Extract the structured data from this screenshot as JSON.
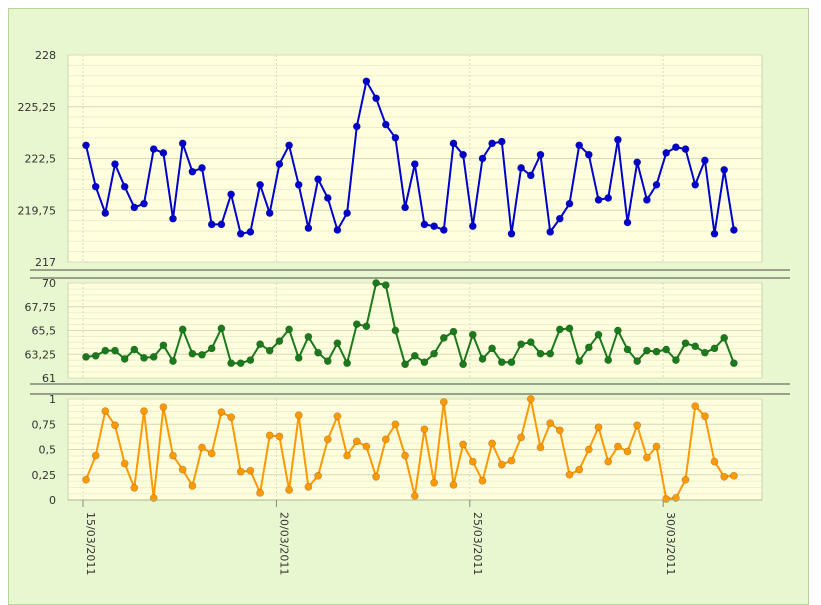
{
  "chart_data": [
    {
      "type": "line",
      "color": "#0000cc",
      "ylim": [
        217,
        228
      ],
      "ytick_labels": [
        "228",
        "225,25",
        "222,5",
        "219,75",
        "217"
      ],
      "x_start": "15/03/2011",
      "values": [
        223.2,
        221.0,
        219.6,
        222.2,
        221.0,
        219.9,
        220.1,
        223.0,
        222.8,
        219.3,
        223.3,
        221.8,
        222.0,
        219.0,
        219.0,
        220.6,
        218.5,
        218.6,
        221.1,
        219.6,
        222.2,
        223.2,
        221.1,
        218.8,
        221.4,
        220.4,
        218.7,
        219.6,
        224.2,
        226.6,
        225.7,
        224.3,
        223.6,
        219.9,
        222.2,
        219.0,
        218.9,
        218.7,
        223.3,
        222.7,
        218.9,
        222.5,
        223.3,
        223.4,
        218.5,
        222.0,
        221.6,
        222.7,
        218.6,
        219.3,
        220.1,
        223.2,
        222.7,
        220.3,
        220.4,
        223.5,
        219.1,
        222.3,
        220.3,
        221.1,
        222.8,
        223.1,
        223.0,
        221.1,
        222.4,
        218.5,
        221.9,
        218.7
      ]
    },
    {
      "type": "line",
      "color": "#1b7a1b",
      "ylim": [
        61,
        70
      ],
      "ytick_labels": [
        "70",
        "67,75",
        "65,5",
        "63,25",
        "61"
      ],
      "values": [
        63.0,
        63.1,
        63.6,
        63.6,
        62.8,
        63.7,
        62.9,
        63.0,
        64.1,
        62.6,
        65.6,
        63.3,
        63.2,
        63.8,
        65.7,
        62.4,
        62.4,
        62.7,
        64.2,
        63.6,
        64.5,
        65.6,
        62.9,
        64.9,
        63.4,
        62.6,
        64.3,
        62.4,
        66.1,
        65.9,
        70.0,
        69.8,
        65.5,
        62.3,
        63.1,
        62.5,
        63.3,
        64.8,
        65.4,
        62.3,
        65.1,
        62.8,
        63.8,
        62.5,
        62.5,
        64.2,
        64.4,
        63.3,
        63.3,
        65.6,
        65.7,
        62.6,
        63.9,
        65.1,
        62.7,
        65.5,
        63.7,
        62.6,
        63.6,
        63.5,
        63.7,
        62.7,
        64.3,
        64.0,
        63.4,
        63.8,
        64.8,
        62.4
      ]
    },
    {
      "type": "line",
      "color": "#ff9900",
      "ylim": [
        0,
        1
      ],
      "ytick_labels": [
        "1",
        "0,75",
        "0,5",
        "0,25",
        "0"
      ],
      "x_tick_labels": [
        "15/03/2011",
        "20/03/2011",
        "25/03/2011",
        "30/03/2011"
      ],
      "values": [
        0.2,
        0.44,
        0.88,
        0.74,
        0.36,
        0.12,
        0.88,
        0.02,
        0.92,
        0.44,
        0.3,
        0.14,
        0.52,
        0.46,
        0.87,
        0.82,
        0.28,
        0.29,
        0.07,
        0.64,
        0.63,
        0.1,
        0.84,
        0.13,
        0.24,
        0.6,
        0.83,
        0.44,
        0.58,
        0.53,
        0.23,
        0.6,
        0.75,
        0.44,
        0.04,
        0.7,
        0.17,
        0.97,
        0.15,
        0.55,
        0.38,
        0.19,
        0.56,
        0.35,
        0.39,
        0.62,
        1.0,
        0.52,
        0.76,
        0.69,
        0.25,
        0.3,
        0.5,
        0.72,
        0.38,
        0.53,
        0.48,
        0.74,
        0.42,
        0.53,
        0.01,
        0.02,
        0.2,
        0.93,
        0.83,
        0.38,
        0.23,
        0.24
      ]
    }
  ]
}
